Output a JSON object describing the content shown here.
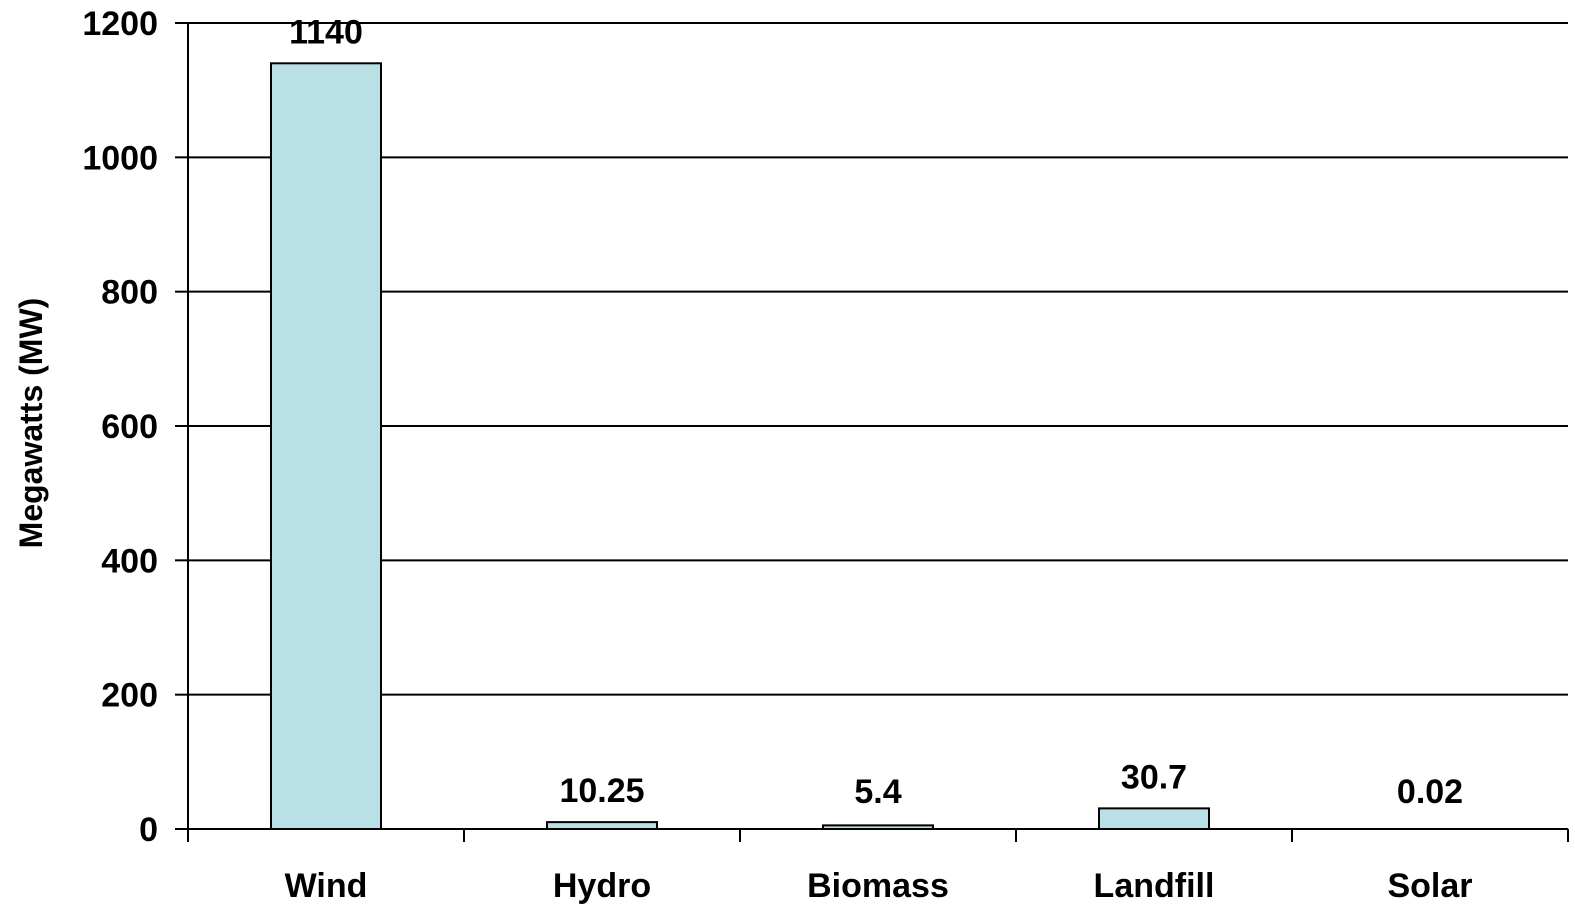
{
  "chart_data": {
    "type": "bar",
    "categories": [
      "Wind",
      "Hydro",
      "Biomass",
      "Landfill",
      "Solar"
    ],
    "values": [
      1140,
      10.25,
      5.4,
      30.7,
      0.02
    ],
    "data_labels": [
      "1140",
      "10.25",
      "5.4",
      "30.7",
      "0.02"
    ],
    "title": "",
    "xlabel": "",
    "ylabel": "Megawatts (MW)",
    "ylim": [
      0,
      1200
    ],
    "yticks": [
      0,
      200,
      400,
      600,
      800,
      1000,
      1200
    ],
    "ytick_labels": [
      "0",
      "200",
      "400",
      "600",
      "800",
      "1000",
      "1200"
    ],
    "grid": "horizontal",
    "legend": "none",
    "colors": {
      "bar_fill": "#B9E0E4",
      "bar_stroke": "#000000",
      "grid": "#000000",
      "axis": "#000000"
    }
  }
}
